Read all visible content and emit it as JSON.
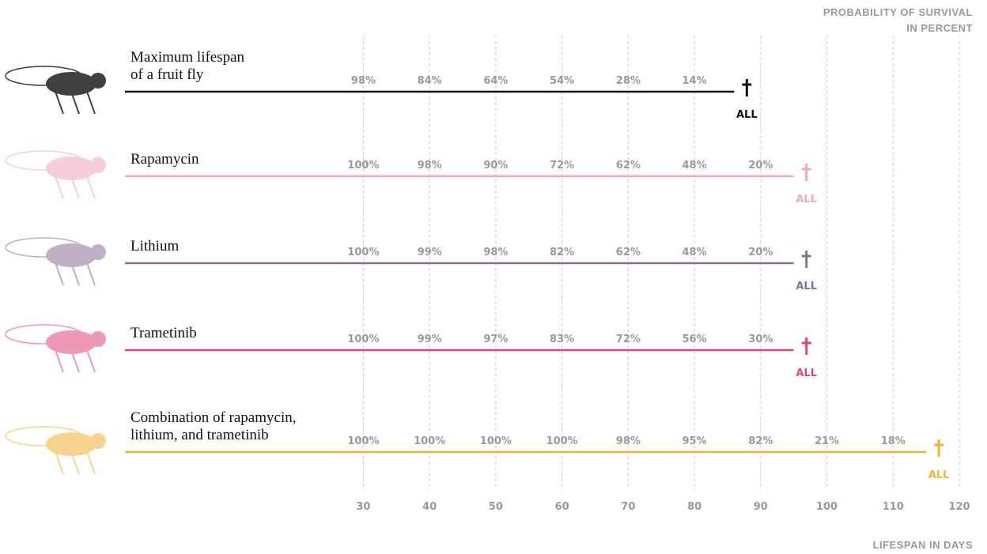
{
  "chart_data": {
    "type": "lifespan",
    "y_caption": [
      "PROBABILITY OF SURVIVAL",
      "IN PERCENT"
    ],
    "x_label": "LIFESPAN IN DAYS",
    "xlim": [
      -6,
      120
    ],
    "xticks": [
      30,
      40,
      50,
      60,
      70,
      80,
      90,
      100,
      110,
      120
    ],
    "grid": true,
    "series": [
      {
        "name": "Maximum lifespan\nof a fruit fly",
        "color": "#111111",
        "lifespan": 86,
        "end_label": "ALL",
        "x": [
          30,
          40,
          50,
          60,
          70,
          80
        ],
        "values": [
          98,
          84,
          64,
          54,
          28,
          14
        ],
        "value_labels": [
          "98%",
          "84%",
          "64%",
          "54%",
          "28%",
          "14%"
        ]
      },
      {
        "name": "Rapamycin",
        "color": "#f4a6be",
        "lifespan": 95,
        "end_label": "ALL",
        "x": [
          30,
          40,
          50,
          60,
          70,
          80,
          90
        ],
        "values": [
          100,
          98,
          90,
          72,
          62,
          48,
          20
        ],
        "value_labels": [
          "100%",
          "98%",
          "90%",
          "72%",
          "62%",
          "48%",
          "20%"
        ]
      },
      {
        "name": "Lithium",
        "color": "#8b6f9b",
        "lifespan": 95,
        "end_label": "ALL",
        "x": [
          30,
          40,
          50,
          60,
          70,
          80,
          90
        ],
        "values": [
          100,
          99,
          98,
          82,
          62,
          48,
          20
        ],
        "value_labels": [
          "100%",
          "99%",
          "98%",
          "82%",
          "62%",
          "48%",
          "20%"
        ]
      },
      {
        "name": "Trametinib",
        "color": "#e0457b",
        "lifespan": 95,
        "end_label": "ALL",
        "x": [
          30,
          40,
          50,
          60,
          70,
          80,
          90
        ],
        "values": [
          100,
          99,
          97,
          83,
          72,
          56,
          30
        ],
        "value_labels": [
          "100%",
          "99%",
          "97%",
          "83%",
          "72%",
          "56%",
          "30%"
        ]
      },
      {
        "name": "Combination of rapamycin,\nlithium, and trametinib",
        "color": "#f2b233",
        "lifespan": 115,
        "end_label": "ALL",
        "x": [
          30,
          40,
          50,
          60,
          70,
          80,
          90,
          100,
          110
        ],
        "values": [
          100,
          100,
          100,
          100,
          98,
          95,
          82,
          21,
          18
        ],
        "value_labels": [
          "100%",
          "100%",
          "100%",
          "100%",
          "98%",
          "95%",
          "82%",
          "21%",
          "18%"
        ]
      }
    ]
  }
}
